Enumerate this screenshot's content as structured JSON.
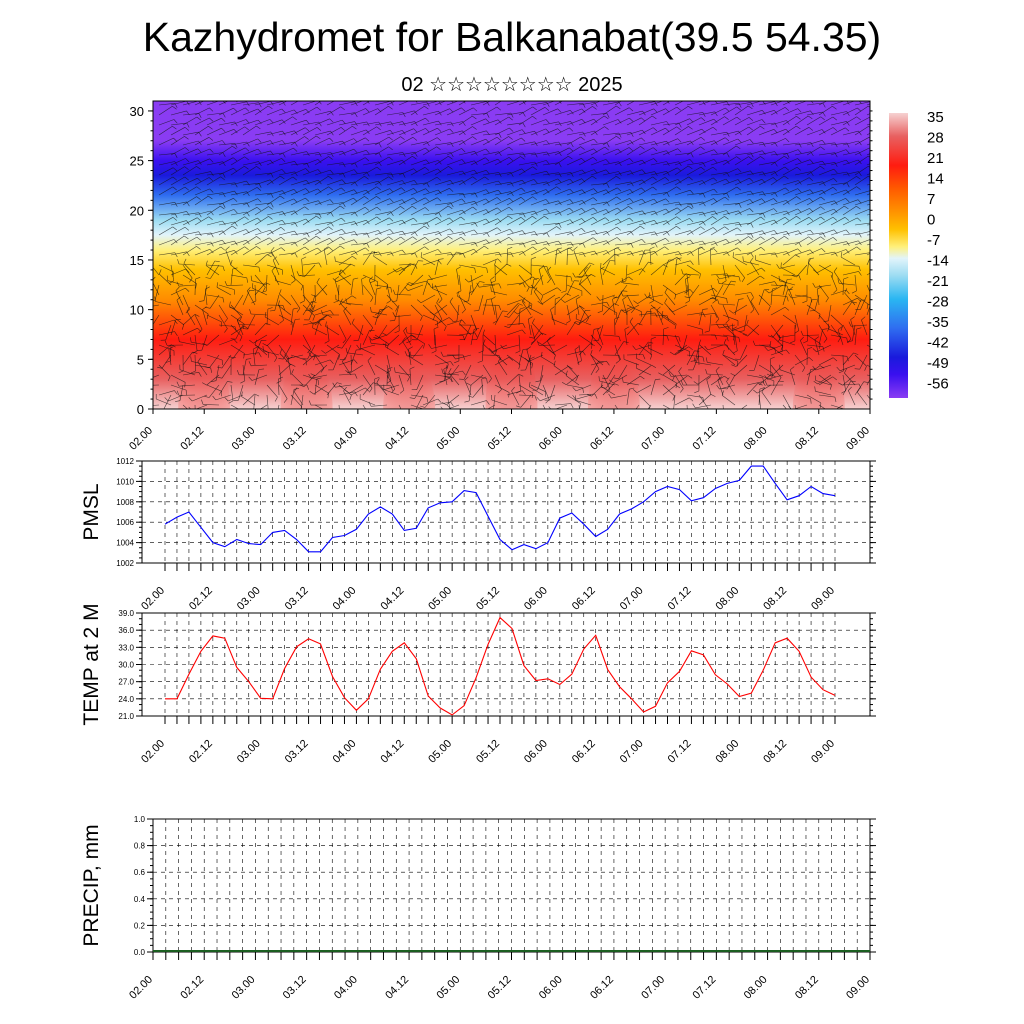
{
  "page": {
    "title": "Kazhydromet for Balkanabat(39.5 54.35)",
    "subtitle": "02 ☆☆☆☆☆☆☆☆ 2025"
  },
  "chart_data": [
    {
      "type": "heatmap",
      "name": "cross-section",
      "xlabel": "",
      "ylabel": "",
      "x_tick_labels": [
        "02.00",
        "02.12",
        "03.00",
        "03.12",
        "04.00",
        "04.12",
        "05.00",
        "05.12",
        "06.00",
        "06.12",
        "07.00",
        "07.12",
        "08.00",
        "08.12",
        "09.00"
      ],
      "y_ticks": [
        0,
        5,
        10,
        15,
        20,
        25,
        30
      ],
      "ylim": [
        0,
        31
      ],
      "colorbar": {
        "labels": [
          "35",
          "28",
          "21",
          "14",
          "7",
          "0",
          "-7",
          "-14",
          "-21",
          "-28",
          "-35",
          "-42",
          "-49",
          "-56"
        ],
        "range": [
          -60,
          38
        ],
        "stops": [
          {
            "v": 38,
            "color": "#f6d2d2"
          },
          {
            "v": 30,
            "color": "#e86060"
          },
          {
            "v": 20,
            "color": "#ff1c10"
          },
          {
            "v": 12,
            "color": "#ff5a00"
          },
          {
            "v": 5,
            "color": "#ff8c00"
          },
          {
            "v": -2,
            "color": "#ffc000"
          },
          {
            "v": -8,
            "color": "#fff07a"
          },
          {
            "v": -12,
            "color": "#e2f4fb"
          },
          {
            "v": -18,
            "color": "#9cdcf2"
          },
          {
            "v": -26,
            "color": "#2ab6f2"
          },
          {
            "v": -36,
            "color": "#2f6df0"
          },
          {
            "v": -46,
            "color": "#1a1adc"
          },
          {
            "v": -52,
            "color": "#3a10ef"
          },
          {
            "v": -60,
            "color": "#8a3cf3"
          }
        ]
      },
      "wind_barbs": true
    },
    {
      "type": "line",
      "name": "pmsl",
      "ylabel": "PMSL",
      "ylim": [
        1002,
        1012
      ],
      "y_ticks": [
        1002,
        1004,
        1006,
        1008,
        1010,
        1012
      ],
      "x_tick_labels": [
        "02.00",
        "02.12",
        "03.00",
        "03.12",
        "04.00",
        "04.12",
        "05.00",
        "05.12",
        "06.00",
        "06.12",
        "07.00",
        "07.12",
        "08.00",
        "08.12",
        "09.00"
      ],
      "series": [
        {
          "color": "#0000ff",
          "values": [
            1005.8,
            1006.5,
            1007.0,
            1005.5,
            1004.0,
            1003.6,
            1004.3,
            1003.9,
            1003.8,
            1005.0,
            1005.2,
            1004.3,
            1003.1,
            1003.1,
            1004.5,
            1004.7,
            1005.3,
            1006.8,
            1007.5,
            1006.8,
            1005.2,
            1005.4,
            1007.4,
            1007.9,
            1008.0,
            1009.1,
            1008.9,
            1006.6,
            1004.3,
            1003.3,
            1003.8,
            1003.4,
            1004.0,
            1006.4,
            1006.9,
            1005.8,
            1004.6,
            1005.3,
            1006.8,
            1007.3,
            1008.0,
            1009.0,
            1009.5,
            1009.2,
            1008.1,
            1008.4,
            1009.3,
            1009.8,
            1010.1,
            1011.5,
            1011.5,
            1009.8,
            1008.2,
            1008.6,
            1009.5,
            1008.8,
            1008.6
          ]
        }
      ]
    },
    {
      "type": "line",
      "name": "temp",
      "ylabel": "TEMP at 2 M",
      "ylim": [
        21,
        39
      ],
      "y_ticks": [
        "21.0",
        "24.0",
        "27.0",
        "30.0",
        "33.0",
        "36.0",
        "39.0"
      ],
      "x_tick_labels": [
        "02.00",
        "02.12",
        "03.00",
        "03.12",
        "04.00",
        "04.12",
        "05.00",
        "05.12",
        "06.00",
        "06.12",
        "07.00",
        "07.12",
        "08.00",
        "08.12",
        "09.00"
      ],
      "series": [
        {
          "color": "#ff0000",
          "values": [
            24.0,
            24.0,
            28.3,
            32.3,
            35.0,
            34.6,
            29.5,
            27.0,
            24.1,
            24.0,
            29.3,
            33.1,
            34.5,
            33.6,
            27.9,
            24.2,
            22.0,
            24.0,
            29.2,
            32.3,
            33.8,
            31.0,
            24.5,
            22.4,
            21.2,
            22.8,
            27.7,
            33.5,
            38.2,
            36.3,
            29.8,
            27.2,
            27.5,
            26.5,
            28.3,
            32.7,
            35.1,
            29.1,
            26.1,
            24.0,
            21.7,
            22.7,
            26.8,
            28.8,
            32.4,
            31.7,
            28.2,
            26.6,
            24.4,
            25.0,
            29.0,
            33.8,
            34.6,
            32.3,
            27.8,
            25.6,
            24.6
          ]
        }
      ]
    },
    {
      "type": "bar",
      "name": "precip",
      "ylabel": "PRECIP, mm",
      "ylim": [
        0,
        1
      ],
      "y_ticks": [
        "0.0",
        "0.2",
        "0.4",
        "0.6",
        "0.8",
        "1.0"
      ],
      "x_tick_labels": [
        "02.00",
        "02.12",
        "03.00",
        "03.12",
        "04.00",
        "04.12",
        "05.00",
        "05.12",
        "06.00",
        "06.12",
        "07.00",
        "07.12",
        "08.00",
        "08.12",
        "09.00"
      ],
      "values": [
        0,
        0,
        0,
        0,
        0,
        0,
        0,
        0,
        0,
        0,
        0,
        0,
        0,
        0,
        0,
        0,
        0,
        0,
        0,
        0,
        0,
        0,
        0,
        0,
        0,
        0,
        0,
        0,
        0,
        0,
        0,
        0,
        0,
        0,
        0,
        0,
        0,
        0,
        0,
        0,
        0,
        0,
        0,
        0,
        0,
        0,
        0,
        0,
        0,
        0,
        0,
        0,
        0,
        0,
        0,
        0,
        0
      ]
    }
  ]
}
